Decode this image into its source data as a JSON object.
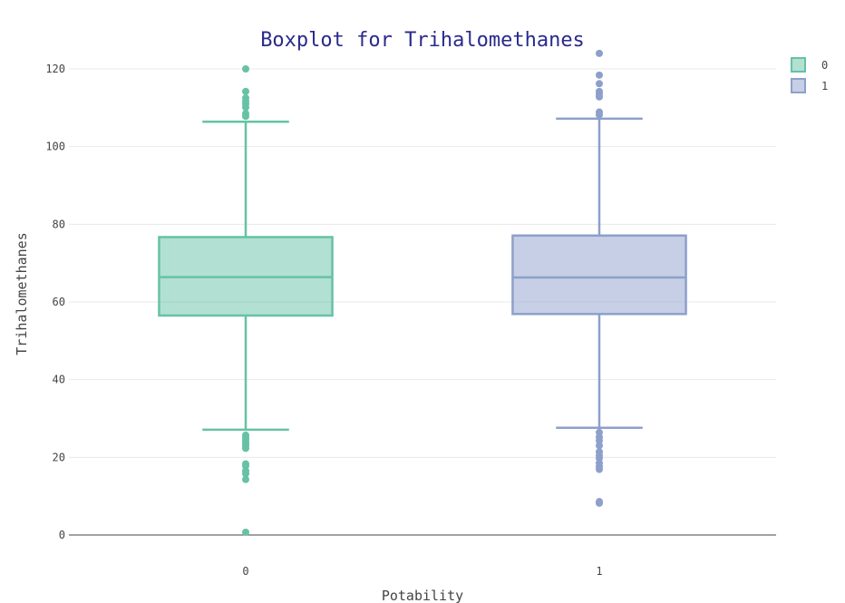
{
  "colors": {
    "background": "#ffffff",
    "grid": "#e8e8e8",
    "zeroline": "#444444",
    "title": "#2a2a8c"
  },
  "chart_data": {
    "type": "box",
    "title": "Boxplot for Trihalomethanes",
    "xlabel": "Potability",
    "ylabel": "Trihalomethanes",
    "categories": [
      "0",
      "1"
    ],
    "ylim": [
      0,
      124
    ],
    "yticks": [
      0,
      20,
      40,
      60,
      80,
      100,
      120
    ],
    "grid": true,
    "legend_position": "top-right",
    "series": [
      {
        "name": "0",
        "category": "0",
        "color": "#66c2a5",
        "fill": "rgba(102,194,165,0.5)",
        "q1": 56.5,
        "median": 66.4,
        "q3": 76.7,
        "whisker_low": 27.1,
        "whisker_high": 106.4,
        "outliers": [
          120.0,
          114.2,
          112.5,
          111.7,
          111.0,
          110.1,
          108.5,
          107.8,
          0.7,
          14.3,
          15.8,
          16.5,
          17.8,
          18.3,
          22.3,
          22.9,
          23.5,
          24.0,
          24.6,
          25.2,
          25.7
        ]
      },
      {
        "name": "1",
        "category": "1",
        "color": "#8da0cb",
        "fill": "rgba(141,160,203,0.5)",
        "q1": 56.9,
        "median": 66.3,
        "q3": 77.1,
        "whisker_low": 27.6,
        "whisker_high": 107.2,
        "outliers": [
          124.0,
          118.4,
          116.2,
          114.2,
          113.5,
          112.8,
          108.9,
          108.2,
          8.2,
          8.6,
          16.9,
          17.6,
          18.5,
          19.8,
          20.5,
          21.4,
          23.0,
          24.3,
          25.2,
          26.4
        ]
      }
    ]
  }
}
